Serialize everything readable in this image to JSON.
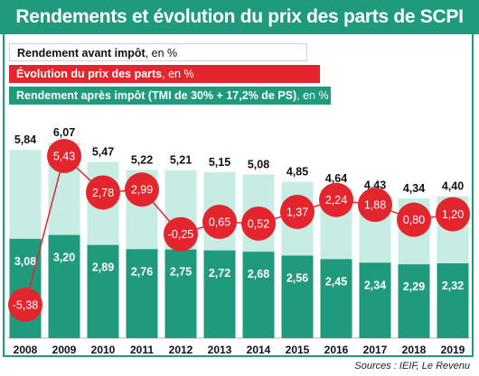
{
  "title": "Rendements et évolution du prix des parts de SCPI",
  "legend": {
    "before_tax": {
      "label": "Rendement avant impôt",
      "unit": ", en %"
    },
    "price_change": {
      "label": "Évolution du prix des parts",
      "unit": ", en %"
    },
    "after_tax": {
      "label": "Rendement après impôt (TMI de 30% + 17,2% de PS)",
      "unit": ", en %"
    }
  },
  "source": "Sources : IEIF, Le Revenu",
  "colors": {
    "light": "#c6ece4",
    "dark": "#1f9a7c",
    "red": "#e3262e"
  },
  "chart_data": {
    "type": "bar",
    "categories": [
      "2008",
      "2009",
      "2010",
      "2011",
      "2012",
      "2013",
      "2014",
      "2015",
      "2016",
      "2017",
      "2018",
      "2019"
    ],
    "series": [
      {
        "name": "Rendement avant impôt",
        "values": [
          5.84,
          6.07,
          5.47,
          5.22,
          5.21,
          5.15,
          5.08,
          4.85,
          4.64,
          4.43,
          4.34,
          4.4
        ],
        "labels": [
          "5,84",
          "6,07",
          "5,47",
          "5,22",
          "5,21",
          "5,15",
          "5,08",
          "4,85",
          "4,64",
          "4,43",
          "4,34",
          "4,40"
        ]
      },
      {
        "name": "Rendement après impôt (TMI de 30% + 17,2% de PS)",
        "values": [
          3.08,
          3.2,
          2.89,
          2.76,
          2.75,
          2.72,
          2.68,
          2.56,
          2.45,
          2.34,
          2.29,
          2.32
        ],
        "labels": [
          "3,08",
          "3,20",
          "2,89",
          "2,76",
          "2,75",
          "2,72",
          "2,68",
          "2,56",
          "2,45",
          "2,34",
          "2,29",
          "2,32"
        ]
      },
      {
        "name": "Évolution du prix des parts",
        "type": "line",
        "values": [
          -5.38,
          5.43,
          2.78,
          2.99,
          -0.25,
          0.65,
          0.52,
          1.37,
          2.24,
          1.88,
          0.8,
          1.2
        ],
        "labels": [
          "-5,38",
          "5,43",
          "2,78",
          "2,99",
          "-0,25",
          "0,65",
          "0,52",
          "1,37",
          "2,24",
          "1,88",
          "0,80",
          "1,20"
        ]
      }
    ],
    "ylabel": "en %",
    "grid": false,
    "legend_position": "top-left"
  }
}
